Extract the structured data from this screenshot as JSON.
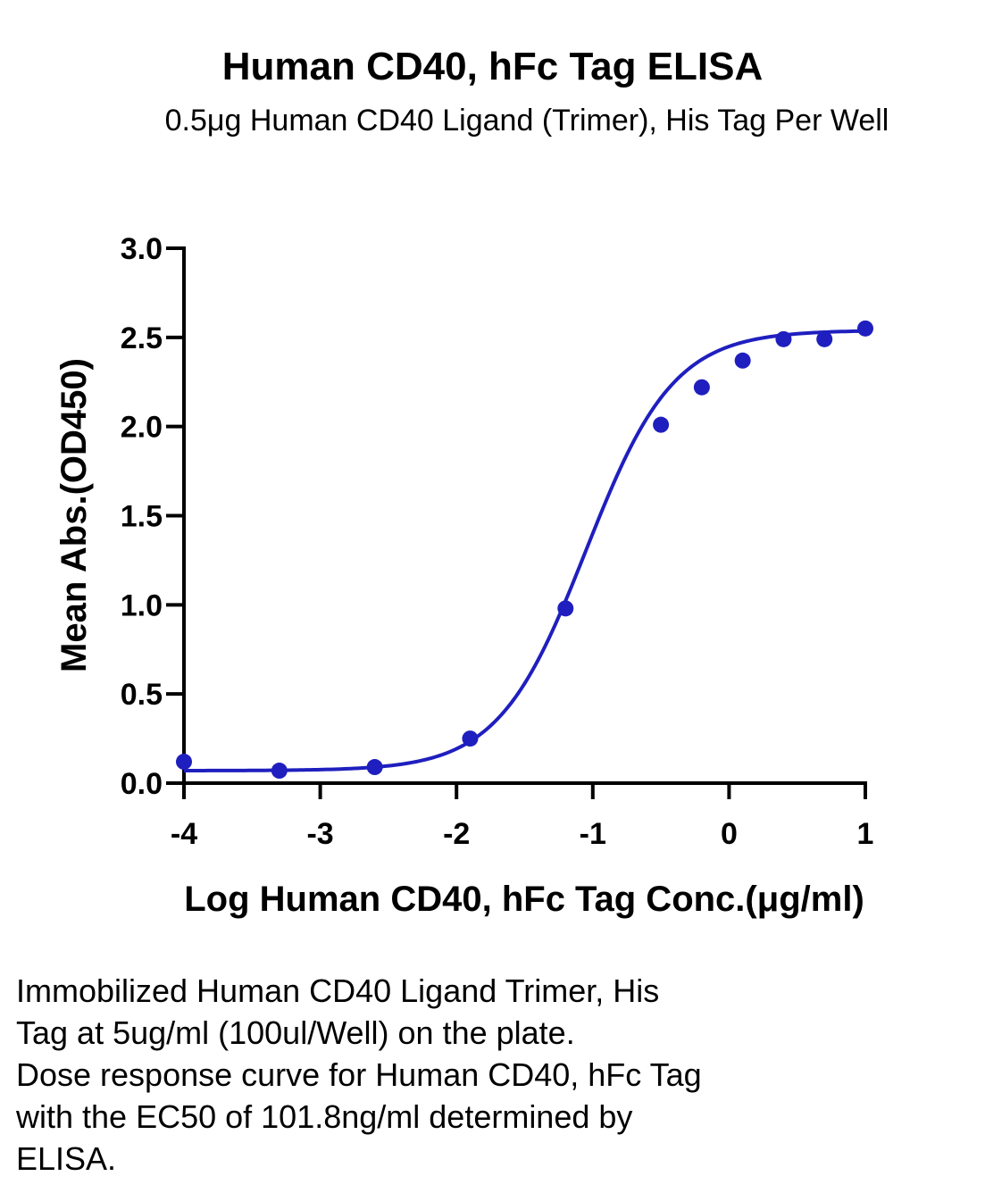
{
  "chart_data": {
    "type": "scatter",
    "title": "Human CD40, hFc Tag ELISA",
    "subtitle": "0.5μg Human CD40 Ligand (Trimer), His Tag Per Well",
    "xlabel": "Log Human CD40, hFc Tag Conc.(μg/ml)",
    "ylabel": "Mean Abs.(OD450)",
    "xlim": [
      -4,
      1
    ],
    "ylim": [
      0,
      3
    ],
    "x_ticks": [
      "-4",
      "-3",
      "-2",
      "-1",
      "0",
      "1"
    ],
    "y_ticks": [
      "0.0",
      "0.5",
      "1.0",
      "1.5",
      "2.0",
      "2.5",
      "3.0"
    ],
    "color": "#1f1fbf",
    "fit": "four-parameter logistic",
    "series": [
      {
        "x": [
          -4.0,
          -3.3,
          -2.6,
          -1.9,
          -1.2,
          -0.5,
          -0.2,
          0.1,
          0.4,
          0.7,
          1.0
        ],
        "y": [
          0.12,
          0.07,
          0.09,
          0.25,
          0.98,
          2.01,
          2.22,
          2.37,
          2.49,
          2.49,
          2.55
        ]
      }
    ]
  },
  "caption": [
    "Immobilized Human CD40 Ligand Trimer, His",
    "Tag at 5ug/ml (100ul/Well) on the plate.",
    "Dose response curve for Human CD40, hFc Tag",
    "with the EC50 of 101.8ng/ml determined by",
    "ELISA."
  ]
}
